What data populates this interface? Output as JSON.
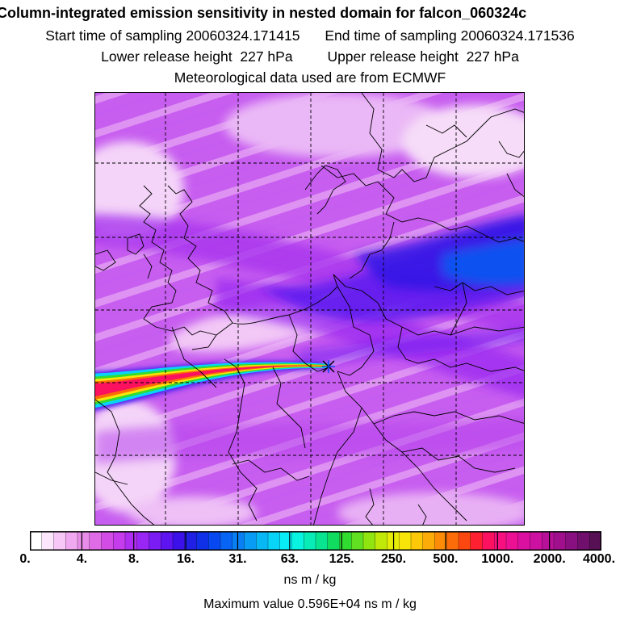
{
  "title": {
    "main": "Column-integrated emission sensitivity in nested domain for falcon_060324c",
    "start_label": "Start time of sampling",
    "start_value": "20060324.171415",
    "end_label": "End time of sampling",
    "end_value": "20060324.171536",
    "lower_label": "Lower release height",
    "lower_value": "227 hPa",
    "upper_label": "Upper release height",
    "upper_value": "227 hPa",
    "met_data": "Meteorological data used are from ECMWF"
  },
  "legend": {
    "tick_labels": [
      "0.",
      "4.",
      "8.",
      "16.",
      "31.",
      "63.",
      "125.",
      "250.",
      "500.",
      "1000.",
      "2000.",
      "4000."
    ],
    "colors": [
      "#ffffff",
      "#fce6fc",
      "#f7c8f7",
      "#f0a8f0",
      "#e98ce9",
      "#df6ce6",
      "#d44ce6",
      "#c53cec",
      "#b02ef2",
      "#9a26f6",
      "#7c1cf4",
      "#5e14f0",
      "#3c10e8",
      "#2020e4",
      "#1030e8",
      "#0848f0",
      "#0864f4",
      "#0880f4",
      "#089cf4",
      "#08b8f4",
      "#08d4f8",
      "#08ecf8",
      "#08f4e0",
      "#08ecb8",
      "#08e490",
      "#10dc60",
      "#30dc30",
      "#60e020",
      "#90e410",
      "#c0e808",
      "#e4ec08",
      "#f8e408",
      "#fcc808",
      "#fcac08",
      "#fc8c08",
      "#fc6c08",
      "#fc4810",
      "#fc2030",
      "#fc1060",
      "#f81080",
      "#ec1094",
      "#dc10a0",
      "#cc10a0",
      "#b81098",
      "#a0108c",
      "#881080",
      "#70106c",
      "#581054"
    ],
    "units": "ns m / kg",
    "max_value": "Maximum value  0.596E+04 ns m / kg"
  },
  "map": {
    "release_marker": "release-point",
    "grid_style": "dashed"
  }
}
